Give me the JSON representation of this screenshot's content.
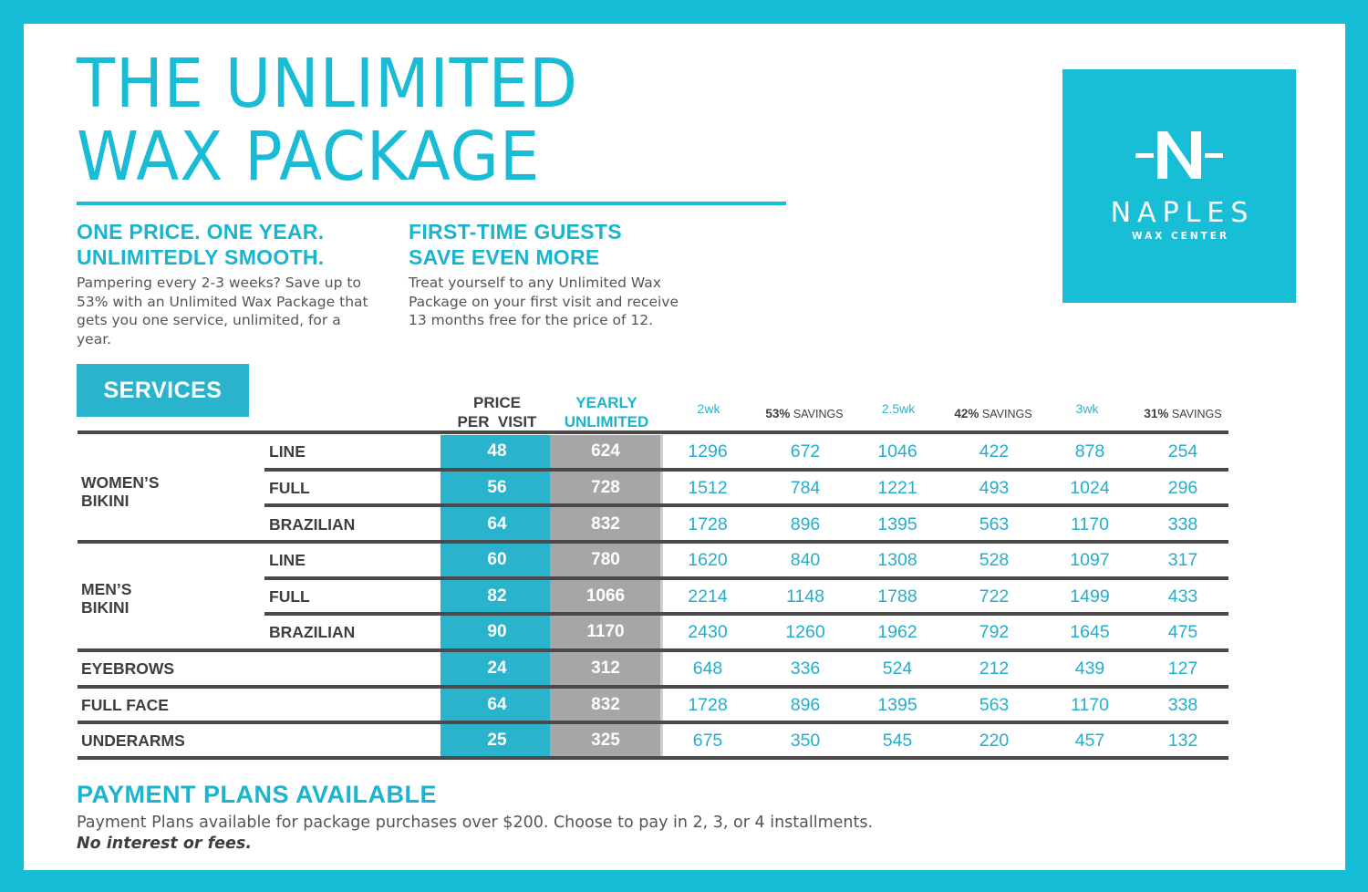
{
  "header": {
    "title_lines": [
      "THE UNLIMITED",
      "WAX PACKAGE"
    ]
  },
  "promos": [
    {
      "heading_lines": [
        "ONE PRICE. ONE YEAR.",
        "UNLIMITEDLY SMOOTH."
      ],
      "body": "Pampering every 2-3 weeks? Save up to 53% with an Unlimited Wax Package that gets you one service, unlimited, for a year."
    },
    {
      "heading_lines": [
        "FIRST-TIME GUESTS",
        "SAVE EVEN MORE"
      ],
      "body": "Treat yourself to any Unlimited Wax Package on your first visit and receive 13 months free for the price of 12."
    }
  ],
  "logo": {
    "mark": "N",
    "name": "NAPLES",
    "subtitle": "WAX CENTER",
    "background": "#17bed6"
  },
  "table": {
    "section_label": "SERVICES",
    "columns": [
      {
        "key": "price",
        "lines": [
          "PRICE",
          "PER  VISIT"
        ]
      },
      {
        "key": "yearly",
        "lines": [
          "YEARLY",
          "UNLIMITED"
        ]
      },
      {
        "key": "2wk",
        "label": "2wk"
      },
      {
        "key": "2wk_save",
        "pct": "53%",
        "label": "SAVINGS"
      },
      {
        "key": "2_5wk",
        "label": "2.5wk"
      },
      {
        "key": "2_5wk_save",
        "pct": "42%",
        "label": "SAVINGS"
      },
      {
        "key": "3wk",
        "label": "3wk"
      },
      {
        "key": "3wk_save",
        "pct": "31%",
        "label": "SAVINGS"
      }
    ],
    "groups": [
      {
        "label_lines": [
          "WOMEN’S",
          "BIKINI"
        ]
      },
      {
        "label_lines": [
          "MEN’S",
          "BIKINI"
        ]
      }
    ],
    "rows": [
      {
        "group": "WOMEN’S BIKINI",
        "label": "LINE",
        "values": [
          "48",
          "624",
          "1296",
          "672",
          "1046",
          "422",
          "878",
          "254"
        ]
      },
      {
        "group": "WOMEN’S BIKINI",
        "label": "FULL",
        "values": [
          "56",
          "728",
          "1512",
          "784",
          "1221",
          "493",
          "1024",
          "296"
        ]
      },
      {
        "group": "WOMEN’S BIKINI",
        "label": "BRAZILIAN",
        "values": [
          "64",
          "832",
          "1728",
          "896",
          "1395",
          "563",
          "1170",
          "338"
        ]
      },
      {
        "group": "MEN’S BIKINI",
        "label": "LINE",
        "values": [
          "60",
          "780",
          "1620",
          "840",
          "1308",
          "528",
          "1097",
          "317"
        ]
      },
      {
        "group": "MEN’S BIKINI",
        "label": "FULL",
        "values": [
          "82",
          "1066",
          "2214",
          "1148",
          "1788",
          "722",
          "1499",
          "433"
        ]
      },
      {
        "group": "MEN’S BIKINI",
        "label": "BRAZILIAN",
        "values": [
          "90",
          "1170",
          "2430",
          "1260",
          "1962",
          "792",
          "1645",
          "475"
        ]
      },
      {
        "group": "",
        "label": "EYEBROWS",
        "values": [
          "24",
          "312",
          "648",
          "336",
          "524",
          "212",
          "439",
          "127"
        ]
      },
      {
        "group": "",
        "label": "FULL FACE",
        "values": [
          "64",
          "832",
          "1728",
          "896",
          "1395",
          "563",
          "1170",
          "338"
        ]
      },
      {
        "group": "",
        "label": "UNDERARMS",
        "values": [
          "25",
          "325",
          "675",
          "350",
          "545",
          "220",
          "457",
          "132"
        ]
      }
    ]
  },
  "payment": {
    "heading": "PAYMENT PLANS AVAILABLE",
    "body": "Payment Plans available for package purchases over $200. Choose to pay in 2, 3, or 4 installments.",
    "note": "No interest or fees."
  },
  "colors": {
    "frame": "#16bdd6",
    "accent": "#1abcd5",
    "price_band": "#2ab3cc",
    "yearly_band": "#a7a5a6",
    "text_dark": "#3e3e3e",
    "rule": "#4a4a4a"
  }
}
